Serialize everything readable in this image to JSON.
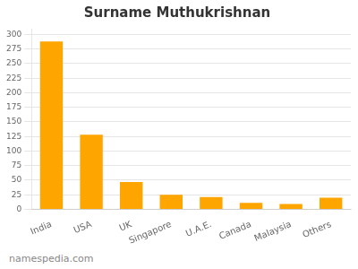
{
  "chart_data": {
    "type": "bar",
    "title": "Surname Muthukrishnan",
    "categories": [
      "India",
      "USA",
      "UK",
      "Singapore",
      "U.A.E.",
      "Canada",
      "Malaysia",
      "Others"
    ],
    "values": [
      288,
      128,
      47,
      25,
      21,
      11,
      9,
      20
    ],
    "color": "#FFA500",
    "ylim": [
      0,
      310
    ],
    "yticks": [
      0,
      25,
      50,
      75,
      100,
      125,
      150,
      175,
      200,
      225,
      250,
      275,
      300
    ],
    "grid": true,
    "annotations": [
      "namespedia.com"
    ]
  }
}
